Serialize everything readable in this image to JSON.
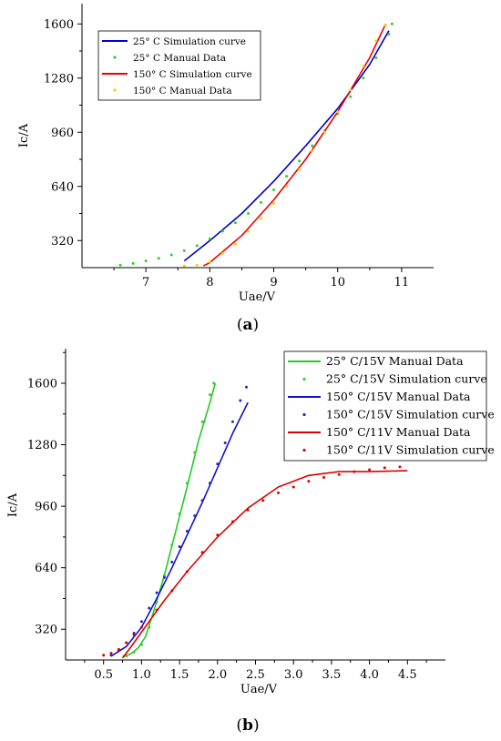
{
  "chart_data": [
    {
      "type": "line",
      "panel_caption": {
        "open": "(",
        "letter": "a",
        "close": ")"
      },
      "xlabel": "Uae/V",
      "ylabel": "Ic/A",
      "xlim": [
        6.0,
        11.5
      ],
      "ylim": [
        160,
        1720
      ],
      "xticks": [
        7,
        8,
        9,
        10,
        11
      ],
      "yticks": [
        320,
        640,
        960,
        1280,
        1600
      ],
      "grid": false,
      "legend_position": "top-left",
      "series": [
        {
          "name": "25° C Simulation curve",
          "style": "line",
          "color": "#0000cc",
          "x": [
            7.6,
            8.0,
            8.5,
            9.0,
            9.5,
            10.0,
            10.5,
            10.8
          ],
          "y": [
            200,
            320,
            480,
            670,
            880,
            1100,
            1360,
            1560
          ]
        },
        {
          "name": "25° C Manual Data",
          "style": "dots",
          "color": "#33cc33",
          "x": [
            6.6,
            6.8,
            7.0,
            7.2,
            7.4,
            7.6,
            7.8,
            8.0,
            8.2,
            8.4,
            8.6,
            8.8,
            9.0,
            9.2,
            9.4,
            9.6,
            9.8,
            10.0,
            10.2,
            10.4,
            10.6,
            10.8,
            10.85
          ],
          "y": [
            175,
            185,
            200,
            215,
            235,
            260,
            290,
            330,
            375,
            425,
            480,
            545,
            620,
            700,
            790,
            880,
            970,
            1070,
            1170,
            1280,
            1400,
            1540,
            1600
          ]
        },
        {
          "name": "150° C Simulation curve",
          "style": "line",
          "color": "#ee0000",
          "x": [
            7.9,
            8.0,
            8.5,
            9.0,
            9.5,
            10.0,
            10.5,
            10.75
          ],
          "y": [
            170,
            190,
            350,
            560,
            800,
            1080,
            1400,
            1600
          ]
        },
        {
          "name": "150° C Manual Data",
          "style": "dots",
          "color": "#ffcc00",
          "x": [
            7.6,
            7.8,
            8.0,
            8.2,
            8.4,
            8.6,
            8.8,
            9.0,
            9.2,
            9.4,
            9.6,
            9.8,
            10.0,
            10.2,
            10.4,
            10.6,
            10.75
          ],
          "y": [
            170,
            175,
            195,
            245,
            300,
            375,
            450,
            540,
            640,
            740,
            850,
            960,
            1080,
            1210,
            1350,
            1500,
            1590
          ]
        }
      ]
    },
    {
      "type": "line",
      "panel_caption": {
        "open": "(",
        "letter": "b",
        "close": ")"
      },
      "xlabel": "Uae/V",
      "ylabel": "Ic/A",
      "xlim": [
        0.0,
        5.0
      ],
      "ylim": [
        160,
        1780
      ],
      "xticks": [
        0.5,
        1.0,
        1.5,
        2.0,
        2.5,
        3.0,
        3.5,
        4.0,
        4.5
      ],
      "yticks": [
        320,
        640,
        960,
        1280,
        1600
      ],
      "grid": false,
      "legend_position": "top-right",
      "series": [
        {
          "name": "25° C/15V Manual Data",
          "style": "line",
          "color": "#22cc22",
          "x": [
            0.75,
            0.85,
            0.95,
            1.05,
            1.15,
            1.3,
            1.45,
            1.6,
            1.75,
            1.9,
            1.97
          ],
          "y": [
            180,
            190,
            220,
            280,
            400,
            600,
            830,
            1060,
            1300,
            1500,
            1600
          ]
        },
        {
          "name": "25° C/15V Simulation curve",
          "style": "dots",
          "color": "#33cc33",
          "x": [
            0.8,
            0.9,
            1.0,
            1.1,
            1.2,
            1.3,
            1.4,
            1.5,
            1.6,
            1.7,
            1.8,
            1.9,
            1.95
          ],
          "y": [
            180,
            200,
            240,
            330,
            460,
            600,
            760,
            920,
            1080,
            1240,
            1400,
            1540,
            1600
          ]
        },
        {
          "name": "150° C/15V Manual Data",
          "style": "line",
          "color": "#1111cc",
          "x": [
            0.6,
            0.8,
            1.0,
            1.2,
            1.4,
            1.6,
            1.8,
            2.0,
            2.2,
            2.4
          ],
          "y": [
            180,
            230,
            330,
            480,
            640,
            810,
            980,
            1160,
            1340,
            1500
          ]
        },
        {
          "name": "150° C/15V Simulation curve",
          "style": "dots",
          "color": "#2222cc",
          "x": [
            0.6,
            0.7,
            0.8,
            0.9,
            1.0,
            1.1,
            1.2,
            1.3,
            1.4,
            1.5,
            1.6,
            1.7,
            1.8,
            1.9,
            2.0,
            2.1,
            2.2,
            2.3,
            2.38
          ],
          "y": [
            185,
            210,
            250,
            300,
            360,
            430,
            510,
            590,
            670,
            750,
            830,
            910,
            990,
            1080,
            1180,
            1290,
            1400,
            1510,
            1580
          ]
        },
        {
          "name": "150° C/11V Manual Data",
          "style": "line",
          "color": "#dd0000",
          "x": [
            0.75,
            0.9,
            1.1,
            1.3,
            1.6,
            2.0,
            2.4,
            2.8,
            3.2,
            3.6,
            4.0,
            4.5
          ],
          "y": [
            170,
            250,
            360,
            470,
            620,
            800,
            950,
            1060,
            1120,
            1140,
            1140,
            1145
          ]
        },
        {
          "name": "150° C/11V Simulation curve",
          "style": "dots",
          "color": "#dd0000",
          "x": [
            0.5,
            0.6,
            0.7,
            0.8,
            0.9,
            1.0,
            1.2,
            1.4,
            1.6,
            1.8,
            2.0,
            2.2,
            2.4,
            2.6,
            2.8,
            3.0,
            3.2,
            3.4,
            3.6,
            3.8,
            4.0,
            4.2,
            4.4
          ],
          "y": [
            185,
            195,
            215,
            250,
            290,
            330,
            420,
            520,
            620,
            720,
            810,
            880,
            940,
            990,
            1030,
            1060,
            1090,
            1110,
            1125,
            1140,
            1150,
            1160,
            1165
          ]
        }
      ]
    }
  ]
}
